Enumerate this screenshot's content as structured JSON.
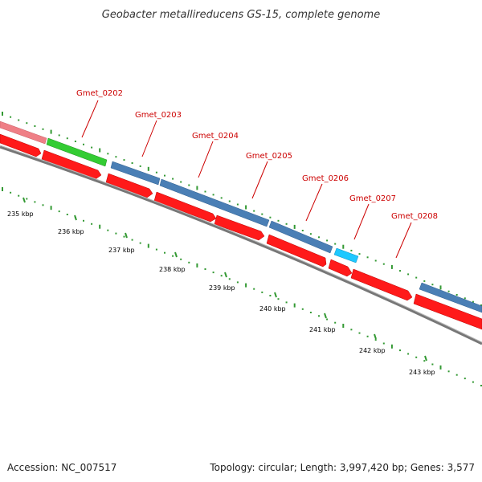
{
  "map": {
    "title": "Geobacter metallireducens GS-15, complete genome",
    "accession_text": "Accession: NC_007517",
    "summary_text": "Topology: circular; Length: 3,997,420 bp; Genes: 3,577",
    "colors": {
      "cds_forward": "#4a7fb5",
      "cds_reverse": "#ff1a1a",
      "rna": "#33cc33",
      "highlight": "#1ec8ff",
      "partial": "#ef7f86",
      "label": "#cc0000",
      "gc_skew": "#339933",
      "backbone": "#777777"
    },
    "gene_labels": [
      "Gmet_0202",
      "Gmet_0203",
      "Gmet_0204",
      "Gmet_0205",
      "Gmet_0206",
      "Gmet_0207",
      "Gmet_0208"
    ],
    "kbp_labels": [
      "235 kbp",
      "236 kbp",
      "237 kbp",
      "238 kbp",
      "239 kbp",
      "240 kbp",
      "241 kbp",
      "242 kbp",
      "243 kbp"
    ]
  }
}
